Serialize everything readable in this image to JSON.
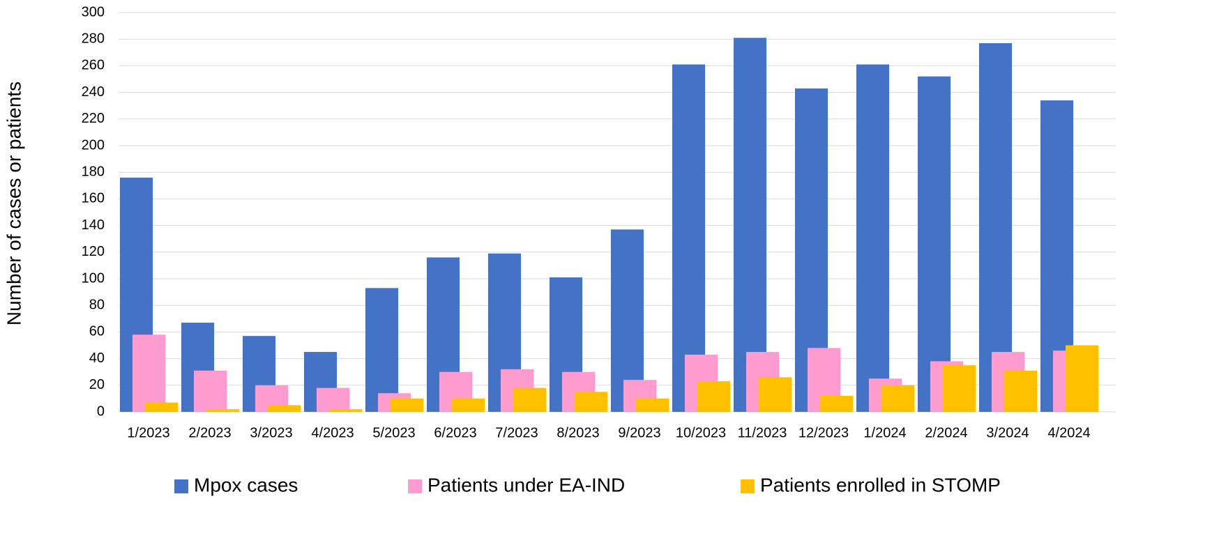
{
  "chart_data": {
    "type": "bar",
    "y_label": "Number of cases or patients",
    "categories": [
      "1/2023",
      "2/2023",
      "3/2023",
      "4/2023",
      "5/2023",
      "6/2023",
      "7/2023",
      "8/2023",
      "9/2023",
      "10/2023",
      "11/2023",
      "12/2023",
      "1/2024",
      "2/2024",
      "3/2024",
      "4/2024"
    ],
    "series": [
      {
        "name": "Mpox cases",
        "color": "#4472c4",
        "values": [
          176,
          67,
          57,
          45,
          93,
          116,
          119,
          101,
          137,
          261,
          281,
          243,
          261,
          252,
          277,
          234
        ]
      },
      {
        "name": "Patients under EA-IND",
        "color": "#ff9ccf",
        "values": [
          58,
          31,
          20,
          18,
          14,
          30,
          32,
          30,
          24,
          43,
          45,
          48,
          25,
          38,
          45,
          46
        ]
      },
      {
        "name": "Patients enrolled in STOMP",
        "color": "#ffc000",
        "values": [
          7,
          2,
          5,
          2,
          10,
          10,
          18,
          15,
          10,
          23,
          26,
          12,
          20,
          35,
          31,
          50
        ]
      }
    ],
    "ylim": [
      0,
      300
    ],
    "yticks": [
      0,
      20,
      40,
      60,
      80,
      100,
      120,
      140,
      160,
      180,
      200,
      220,
      240,
      260,
      280,
      300
    ],
    "grid": true,
    "legend": "bottom"
  }
}
